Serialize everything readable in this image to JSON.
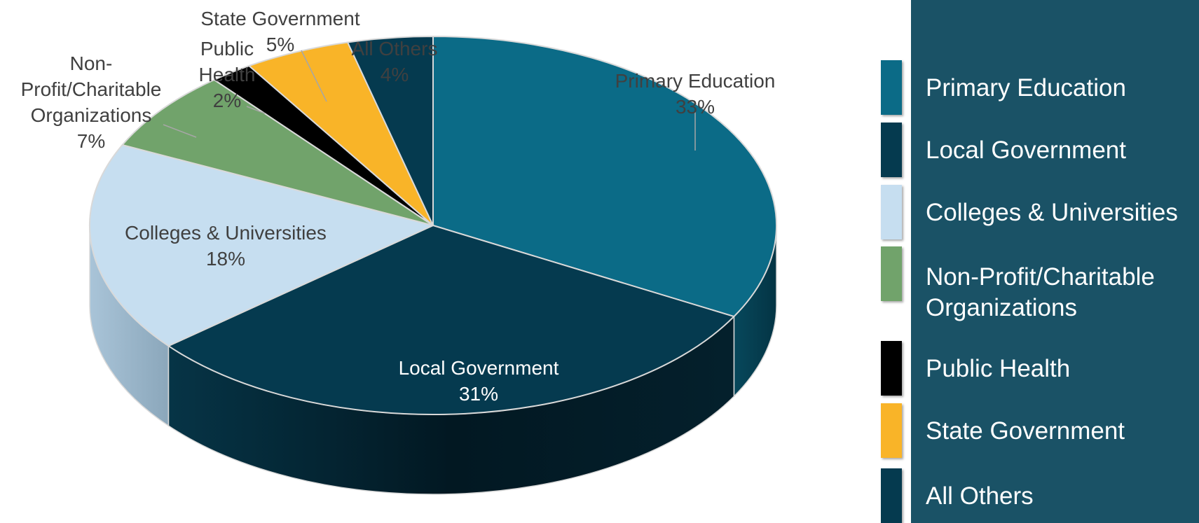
{
  "chart_data": {
    "type": "pie",
    "variant": "3d",
    "slices": [
      {
        "label": "Primary Education",
        "value": 33,
        "display": "33%",
        "color": "#0b6b87"
      },
      {
        "label": "Local Government",
        "value": 31,
        "display": "31%",
        "color": "#053a4f"
      },
      {
        "label": "Colleges & Universities",
        "value": 18,
        "display": "18%",
        "color": "#c6def0"
      },
      {
        "label": "Non-Profit/Charitable Organizations",
        "value": 7,
        "display": "7%",
        "color": "#71a36b"
      },
      {
        "label": "Public Health",
        "value": 2,
        "display": "2%",
        "color": "#000000"
      },
      {
        "label": "State Government",
        "value": 5,
        "display": "5%",
        "color": "#f9b428"
      },
      {
        "label": "All Others",
        "value": 4,
        "display": "4%",
        "color": "#053a4f"
      }
    ],
    "legend": {
      "placement": "right",
      "background": "#1a5266",
      "items": [
        {
          "label": "Primary Education",
          "color": "#0b6b87"
        },
        {
          "label": "Local Government",
          "color": "#053a4f"
        },
        {
          "label": "Colleges & Universities",
          "color": "#c6def0"
        },
        {
          "label": "Non-Profit/Charitable Organizations",
          "color": "#71a36b"
        },
        {
          "label": "Public Health",
          "color": "#000000"
        },
        {
          "label": "State Government",
          "color": "#f9b428"
        },
        {
          "label": "All Others",
          "color": "#053a4f"
        }
      ]
    }
  }
}
